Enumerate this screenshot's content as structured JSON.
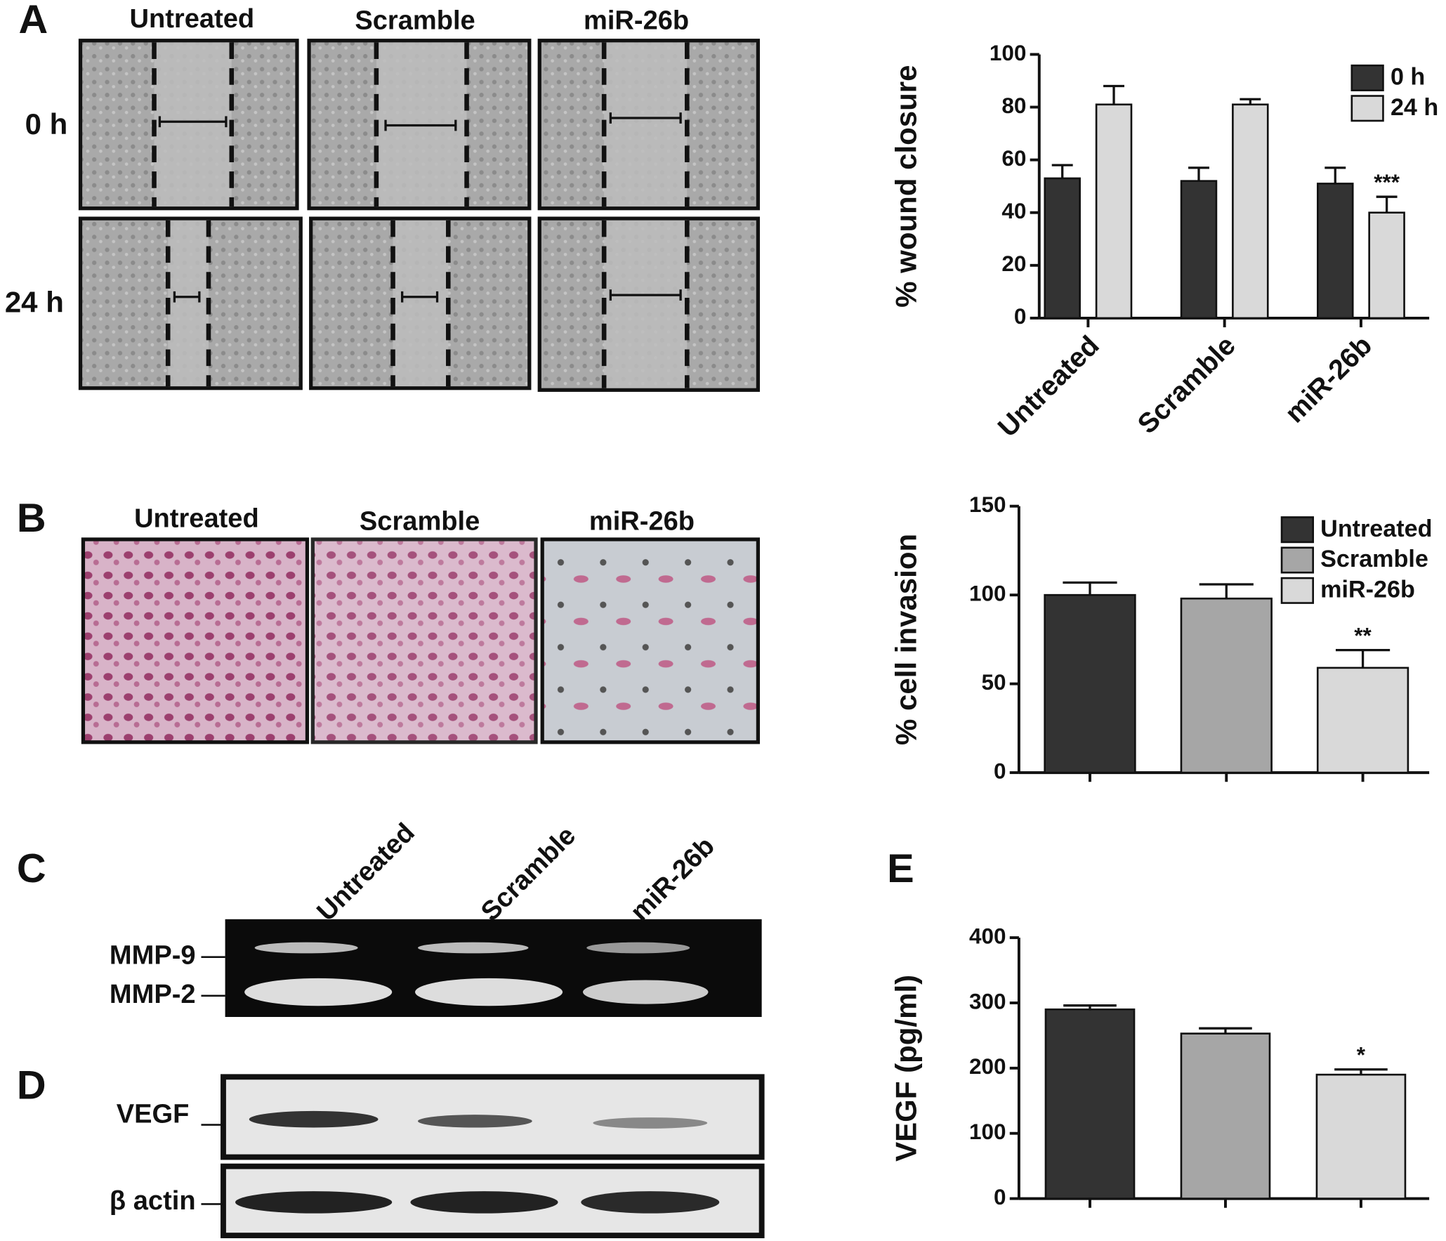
{
  "panel_labels": [
    "A",
    "B",
    "C",
    "D",
    "E"
  ],
  "panel_a_images": {
    "columns": [
      "Untreated",
      "Scramble",
      "miR-26b"
    ],
    "rows": [
      "0 h",
      "24 h"
    ]
  },
  "panel_b_images": {
    "columns": [
      "Untreated",
      "Scramble",
      "miR-26b"
    ]
  },
  "panel_c": {
    "lanes": [
      "Untreated",
      "Scramble",
      "miR-26b"
    ],
    "bands": [
      "MMP-9",
      "MMP-2"
    ]
  },
  "panel_d": {
    "bands": [
      "VEGF",
      "β actin"
    ]
  },
  "chart_data": [
    {
      "type": "bar",
      "ylabel": "% wound closure",
      "categories": [
        "Untreated",
        "Scramble",
        "miR-26b"
      ],
      "series": [
        {
          "name": "0 h",
          "color": "#333333",
          "values": [
            53,
            52,
            51
          ],
          "errors": [
            5,
            5,
            6
          ]
        },
        {
          "name": "24 h",
          "color": "#d9d9d9",
          "values": [
            81,
            81,
            40
          ],
          "errors": [
            7,
            2,
            6
          ],
          "significance": [
            null,
            null,
            "***"
          ]
        }
      ],
      "ylim": [
        0,
        100
      ],
      "yticks": [
        0,
        20,
        40,
        60,
        80,
        100
      ],
      "legend": "upper right"
    },
    {
      "type": "bar",
      "ylabel": "% cell invasion",
      "categories": [
        "Untreated",
        "Scramble",
        "miR-26b"
      ],
      "colors": [
        "#333333",
        "#a6a6a6",
        "#d9d9d9"
      ],
      "values": [
        100,
        98,
        59
      ],
      "errors": [
        7,
        8,
        10
      ],
      "significance": [
        null,
        null,
        "**"
      ],
      "ylim": [
        0,
        150
      ],
      "yticks": [
        0,
        50,
        100,
        150
      ],
      "legend": "upper right"
    },
    {
      "type": "bar",
      "ylabel": "VEGF (pg/ml)",
      "colors": [
        "#333333",
        "#a6a6a6",
        "#d9d9d9"
      ],
      "values": [
        290,
        253,
        190
      ],
      "errors": [
        6,
        8,
        8
      ],
      "significance": [
        null,
        null,
        "*"
      ],
      "ylim": [
        0,
        400
      ],
      "yticks": [
        0,
        100,
        200,
        300,
        400
      ]
    }
  ]
}
